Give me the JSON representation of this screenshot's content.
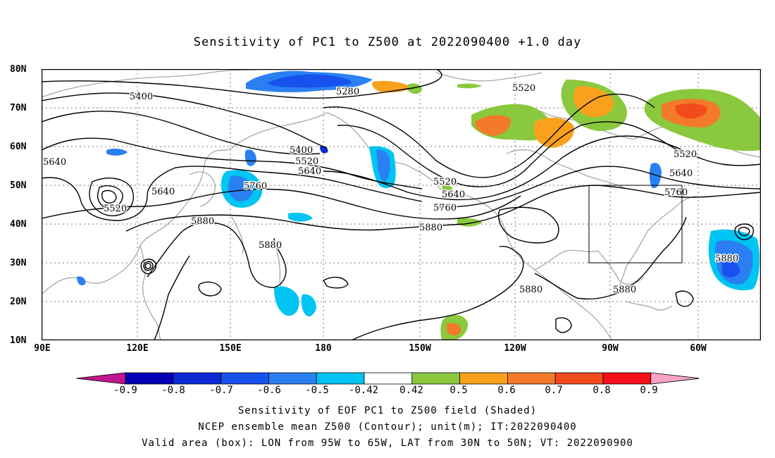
{
  "title": "Sensitivity of PC1 to Z500 at 2022090400 +1.0 day",
  "lat_labels": [
    "80N",
    "70N",
    "60N",
    "50N",
    "40N",
    "30N",
    "20N",
    "10N"
  ],
  "lon_labels": [
    "90E",
    "120E",
    "150E",
    "180",
    "150W",
    "120W",
    "90W",
    "60W"
  ],
  "contour_labels": [
    "5400",
    "5280",
    "5520",
    "5400",
    "5520",
    "5640",
    "5640",
    "5640",
    "5760",
    "5520",
    "5880",
    "5880",
    "5520",
    "5640",
    "5760",
    "5880",
    "5880",
    "5880",
    "5520",
    "5640",
    "5760",
    "5880"
  ],
  "colorbar": {
    "labels": [
      "-0.9",
      "-0.8",
      "-0.7",
      "-0.6",
      "-0.5",
      "-0.42",
      "0.42",
      "0.5",
      "0.6",
      "0.7",
      "0.8",
      "0.9"
    ],
    "colors": [
      "#c0168f",
      "#0000b4",
      "#0b2ad4",
      "#1752ee",
      "#2a80f2",
      "#00c4f2",
      "#ffffff",
      "#8ac83e",
      "#f9a11c",
      "#f37a2a",
      "#f24b1b",
      "#f40f1b",
      "#f7a4c8"
    ]
  },
  "captions": [
    "Sensitivity of EOF PC1 to Z500 field (Shaded)",
    "NCEP ensemble mean Z500 (Contour); unit(m); IT:2022090400",
    "Valid area (box): LON from 95W to 65W, LAT from 30N to 50N; VT: 2022090900"
  ]
}
